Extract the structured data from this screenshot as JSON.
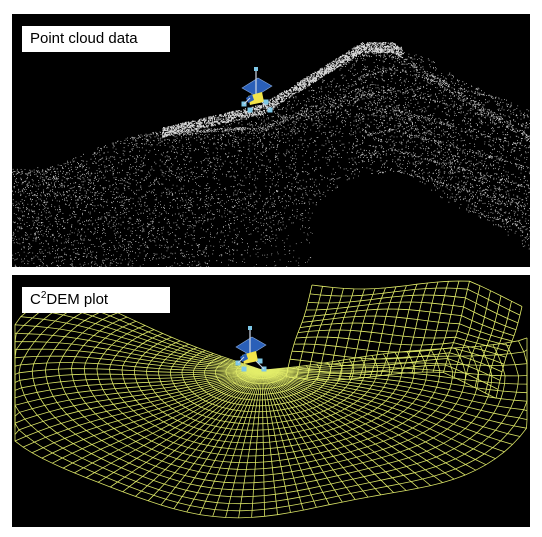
{
  "panels": [
    {
      "title": "Point cloud data"
    },
    {
      "title_prefix": "C",
      "title_sup": "2",
      "title_suffix": "DEM plot"
    }
  ],
  "colors": {
    "background": "#000000",
    "points": "#ffffff",
    "mesh": "#e4ee6a",
    "rover_panel": "#2a5fb8",
    "rover_body": "#f2e44a",
    "rover_wheel": "#7ec8e8"
  },
  "icons": [
    "rover-icon",
    "rover-icon"
  ]
}
